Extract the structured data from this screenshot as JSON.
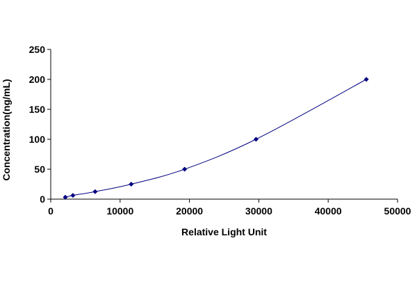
{
  "chart_data": {
    "type": "scatter",
    "xlabel": "Relative Light Unit",
    "ylabel": "Concentration(ng/mL)",
    "xlim": [
      0,
      50000
    ],
    "ylim": [
      0,
      250
    ],
    "x_ticks": [
      0,
      10000,
      20000,
      30000,
      40000,
      50000
    ],
    "y_ticks": [
      0,
      50,
      100,
      150,
      200,
      250
    ],
    "x_tick_labels": [
      "0",
      "10000",
      "20000",
      "30000",
      "40000",
      "50000"
    ],
    "y_tick_labels": [
      "0",
      "50",
      "100",
      "150",
      "200",
      "250"
    ],
    "grid": false,
    "legend": "none",
    "trendline": "smooth curve through points",
    "series": [
      {
        "x": [
          2100,
          3200,
          6400,
          11600,
          19300,
          29600,
          45500
        ],
        "y": [
          3.13,
          6.25,
          12.5,
          25,
          50,
          100,
          200
        ]
      }
    ],
    "colors": {
      "marker": "#000080",
      "line": "#000080",
      "axis": "#000000"
    }
  }
}
